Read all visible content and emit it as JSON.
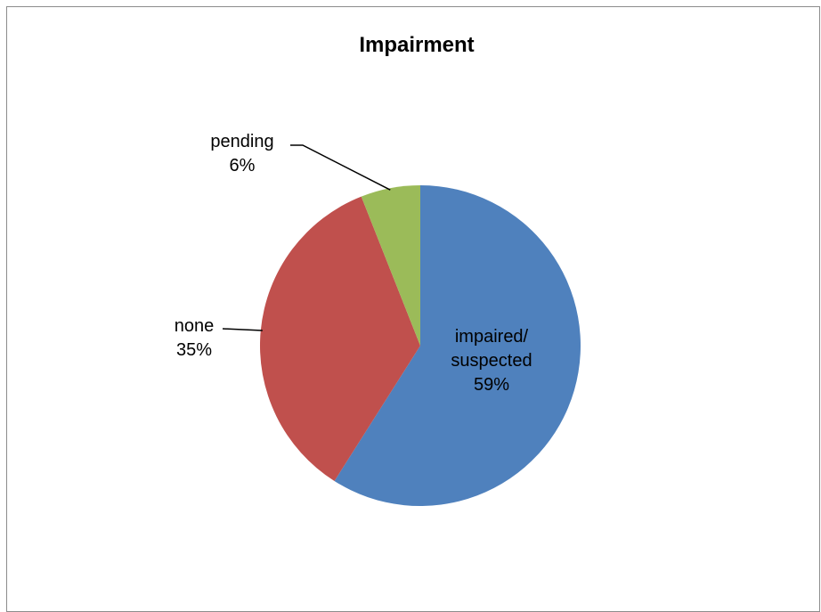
{
  "chart_data": {
    "type": "pie",
    "title": "Impairment",
    "slices": [
      {
        "lines": [
          "impaired/",
          "suspected"
        ],
        "value": 59,
        "pct_label": "59%",
        "color": "#4F81BD"
      },
      {
        "lines": [
          "none"
        ],
        "value": 35,
        "pct_label": "35%",
        "color": "#C0504D"
      },
      {
        "lines": [
          "pending"
        ],
        "value": 6,
        "pct_label": "6%",
        "color": "#9BBB59"
      }
    ],
    "start": "12 o'clock",
    "direction": "clockwise",
    "legend": "none",
    "label_style": "data labels with category and percent"
  }
}
